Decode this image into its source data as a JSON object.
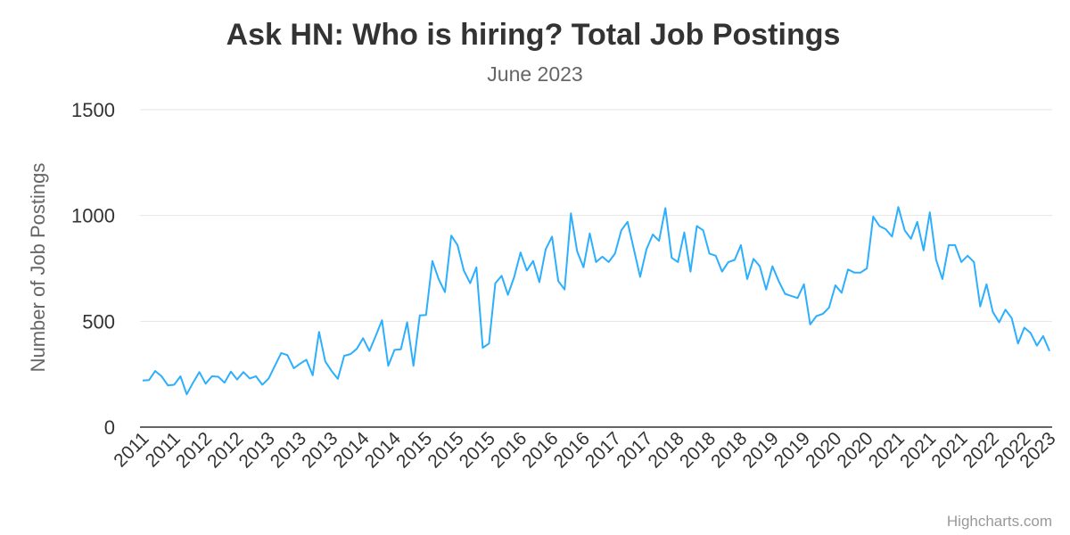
{
  "chart_data": {
    "type": "line",
    "title": "Ask HN: Who is hiring? Total Job Postings",
    "subtitle": "June 2023",
    "y_label": "Number of Job Postings",
    "credits": "Highcharts.com",
    "categories": [
      "2011",
      null,
      null,
      null,
      null,
      "2011",
      null,
      null,
      null,
      null,
      "2012",
      null,
      null,
      null,
      null,
      "2012",
      null,
      null,
      null,
      null,
      "2013",
      null,
      null,
      null,
      null,
      "2013",
      null,
      null,
      null,
      null,
      "2013",
      null,
      null,
      null,
      null,
      "2014",
      null,
      null,
      null,
      null,
      "2014",
      null,
      null,
      null,
      null,
      "2015",
      null,
      null,
      null,
      null,
      "2015",
      null,
      null,
      null,
      null,
      "2015",
      null,
      null,
      null,
      null,
      "2016",
      null,
      null,
      null,
      null,
      "2016",
      null,
      null,
      null,
      null,
      "2016",
      null,
      null,
      null,
      null,
      "2017",
      null,
      null,
      null,
      null,
      "2017",
      null,
      null,
      null,
      null,
      "2018",
      null,
      null,
      null,
      null,
      "2018",
      null,
      null,
      null,
      null,
      "2018",
      null,
      null,
      null,
      null,
      "2019",
      null,
      null,
      null,
      null,
      "2019",
      null,
      null,
      null,
      null,
      "2020",
      null,
      null,
      null,
      null,
      "2020",
      null,
      null,
      null,
      null,
      "2021",
      null,
      null,
      null,
      null,
      "2021",
      null,
      null,
      null,
      null,
      "2021",
      null,
      null,
      null,
      null,
      "2022",
      null,
      null,
      null,
      null,
      "2022",
      null,
      null,
      null,
      "2023"
    ],
    "series": [
      {
        "name": "Total Job Postings",
        "color": "#2caffe",
        "values": [
          220,
          222,
          265,
          240,
          197,
          200,
          240,
          155,
          210,
          260,
          205,
          240,
          238,
          210,
          262,
          225,
          260,
          230,
          240,
          200,
          230,
          290,
          350,
          340,
          278,
          300,
          318,
          245,
          450,
          310,
          265,
          228,
          337,
          345,
          370,
          420,
          360,
          430,
          505,
          290,
          365,
          368,
          495,
          290,
          528,
          530,
          785,
          700,
          638,
          905,
          860,
          740,
          680,
          755,
          375,
          395,
          680,
          715,
          625,
          710,
          825,
          740,
          785,
          685,
          840,
          900,
          690,
          650,
          1010,
          830,
          755,
          915,
          780,
          805,
          780,
          820,
          930,
          970,
          840,
          710,
          840,
          910,
          880,
          1035,
          800,
          780,
          920,
          735,
          950,
          930,
          820,
          810,
          735,
          780,
          790,
          860,
          700,
          795,
          760,
          650,
          760,
          690,
          630,
          620,
          610,
          675,
          485,
          525,
          535,
          565,
          670,
          635,
          745,
          730,
          730,
          750,
          995,
          950,
          935,
          900,
          1040,
          930,
          890,
          970,
          835,
          1015,
          790,
          700,
          860,
          860,
          780,
          810,
          780,
          570,
          675,
          545,
          495,
          555,
          515,
          395,
          470,
          445,
          385,
          430,
          360
        ]
      }
    ],
    "ylim": [
      0,
      1500
    ],
    "yticks": [
      0,
      500,
      1000,
      1500
    ],
    "grid": true
  }
}
